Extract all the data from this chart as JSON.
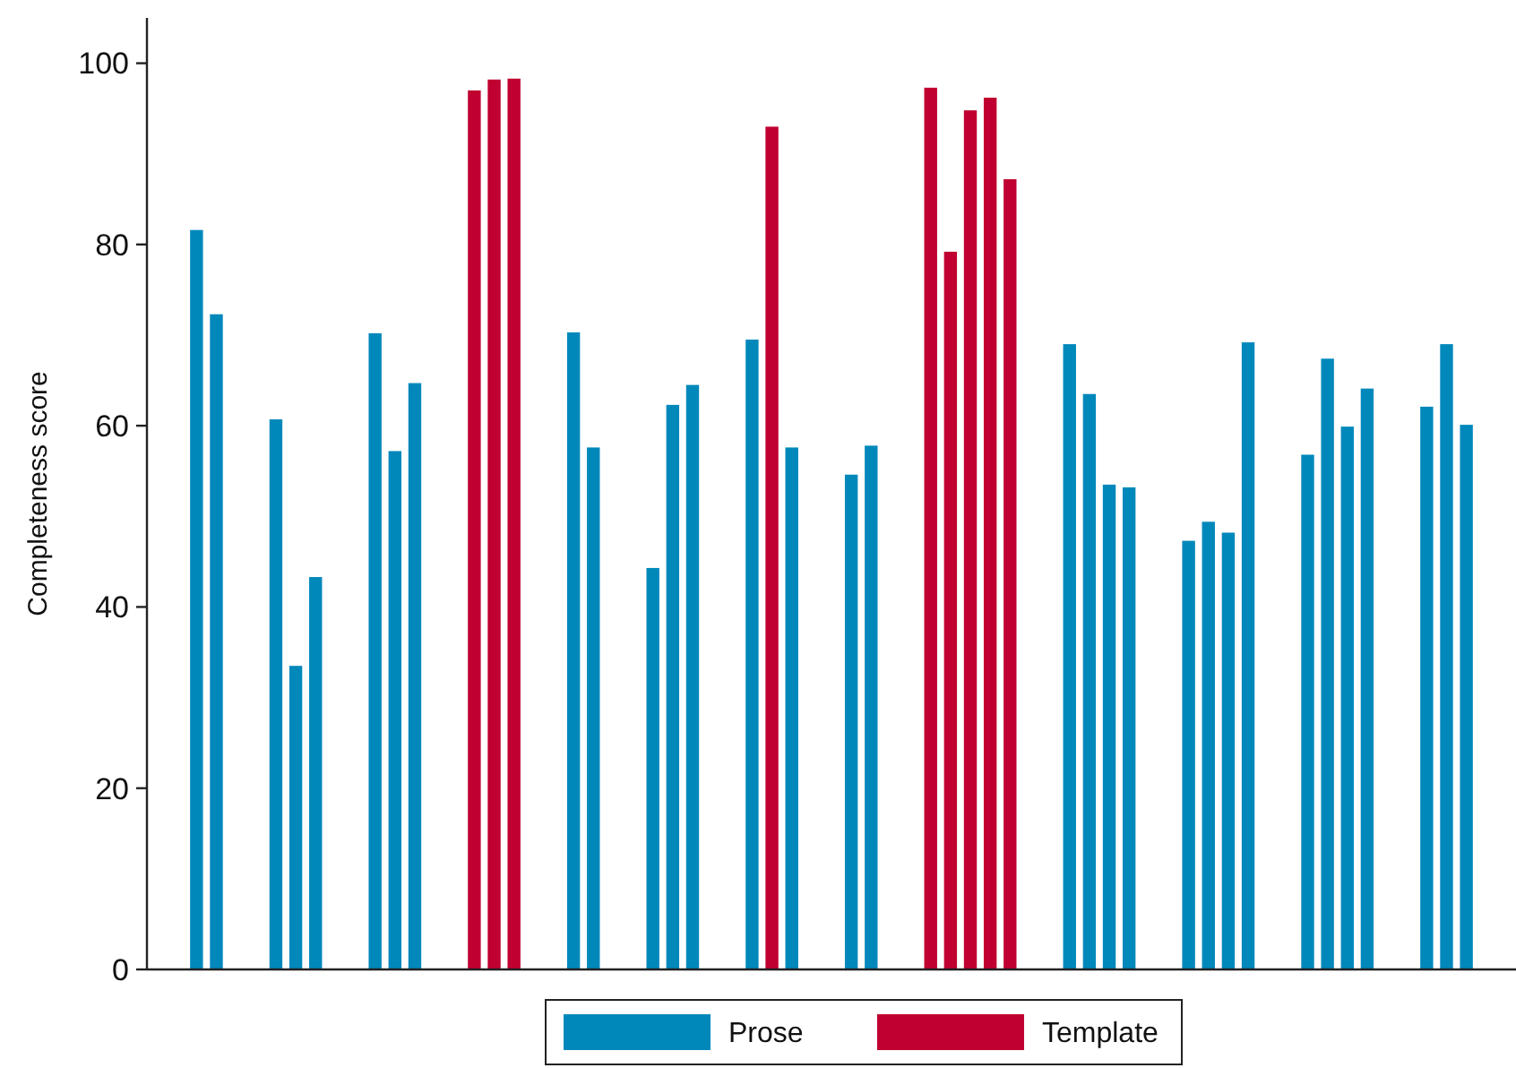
{
  "chart_data": {
    "type": "bar",
    "ylabel": "Completeness score",
    "categories": [
      null,
      null,
      null,
      null,
      null,
      null,
      null,
      null,
      null,
      null,
      null,
      null,
      null,
      null,
      null,
      null,
      null,
      null,
      null,
      null,
      null,
      null,
      null,
      null,
      null,
      null,
      null,
      null,
      null,
      null,
      null,
      null,
      null,
      null,
      null,
      null,
      null,
      null,
      null,
      null,
      null,
      null,
      null,
      null,
      null,
      null,
      null,
      null,
      null,
      null,
      null,
      null,
      null,
      null,
      null,
      null,
      null,
      null,
      null,
      null,
      null,
      null,
      null,
      null,
      null,
      null,
      null,
      null,
      null
    ],
    "series": [
      {
        "name": "Prose",
        "color": "#0088bb",
        "values": [
          null,
          null,
          81.6,
          72.3,
          null,
          null,
          60.7,
          33.5,
          43.3,
          null,
          null,
          70.2,
          57.2,
          64.7,
          null,
          null,
          null,
          null,
          null,
          null,
          null,
          70.3,
          57.6,
          null,
          null,
          44.3,
          62.3,
          64.5,
          null,
          null,
          69.5,
          null,
          57.6,
          null,
          null,
          54.6,
          57.8,
          null,
          null,
          null,
          null,
          null,
          null,
          null,
          null,
          null,
          69.0,
          63.5,
          53.5,
          53.2,
          null,
          null,
          47.3,
          49.4,
          48.2,
          69.2,
          null,
          null,
          56.8,
          67.4,
          59.9,
          64.1,
          null,
          null,
          62.1,
          69.0,
          60.1,
          null,
          null
        ]
      },
      {
        "name": "Template",
        "color": "#c00030",
        "values": [
          null,
          null,
          null,
          null,
          null,
          null,
          null,
          null,
          null,
          null,
          null,
          null,
          null,
          null,
          null,
          null,
          97.0,
          98.2,
          98.3,
          null,
          null,
          null,
          null,
          null,
          null,
          null,
          null,
          null,
          null,
          null,
          null,
          93.0,
          null,
          null,
          null,
          null,
          null,
          null,
          null,
          97.3,
          79.2,
          94.8,
          96.2,
          87.2,
          null,
          null,
          null,
          null,
          null,
          null,
          null,
          null,
          null,
          null,
          null,
          null,
          null,
          null,
          null,
          null,
          null,
          null,
          null,
          null,
          null,
          null,
          null,
          null,
          null
        ]
      }
    ],
    "ylim": [
      0,
      105
    ],
    "yticks": [
      0,
      20,
      40,
      60,
      80,
      100
    ],
    "grid": false,
    "legend": "bottom"
  }
}
